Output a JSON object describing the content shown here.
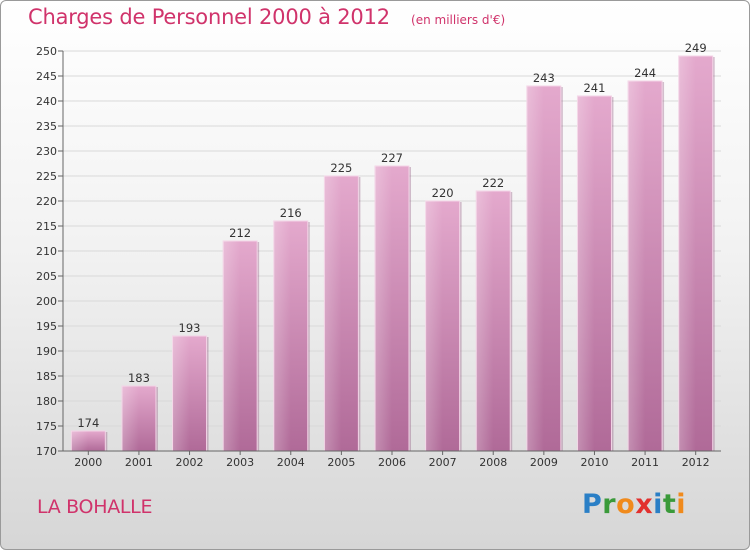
{
  "header": {
    "title": "Charges de Personnel 2000 à 2012",
    "subtitle": "(en milliers d'€)"
  },
  "footer": {
    "commune": "LA BOHALLE",
    "logo_letters": [
      {
        "char": "P",
        "color": "#2a7fc6"
      },
      {
        "char": "r",
        "color": "#3a9a3a"
      },
      {
        "char": "o",
        "color": "#f08a1c"
      },
      {
        "char": "x",
        "color": "#e2302e"
      },
      {
        "char": "i",
        "color": "#2a7fc6"
      },
      {
        "char": "t",
        "color": "#3a9a3a"
      },
      {
        "char": "i",
        "color": "#f08a1c"
      }
    ]
  },
  "colors": {
    "accent": "#d0336b",
    "bar_top": "#e4a9cd",
    "bar_bottom": "#b06a98"
  },
  "chart_data": {
    "type": "bar",
    "categories": [
      "2000",
      "2001",
      "2002",
      "2003",
      "2004",
      "2005",
      "2006",
      "2007",
      "2008",
      "2009",
      "2010",
      "2011",
      "2012"
    ],
    "values": [
      174,
      183,
      193,
      212,
      216,
      225,
      227,
      220,
      222,
      243,
      241,
      244,
      249
    ],
    "title": "Charges de Personnel 2000 à 2012",
    "subtitle": "(en milliers d'€)",
    "xlabel": "",
    "ylabel": "",
    "ylim": [
      170,
      250
    ],
    "yticks": [
      170,
      175,
      180,
      185,
      190,
      195,
      200,
      205,
      210,
      215,
      220,
      225,
      230,
      235,
      240,
      245,
      250
    ],
    "grid": true,
    "legend": "none"
  }
}
